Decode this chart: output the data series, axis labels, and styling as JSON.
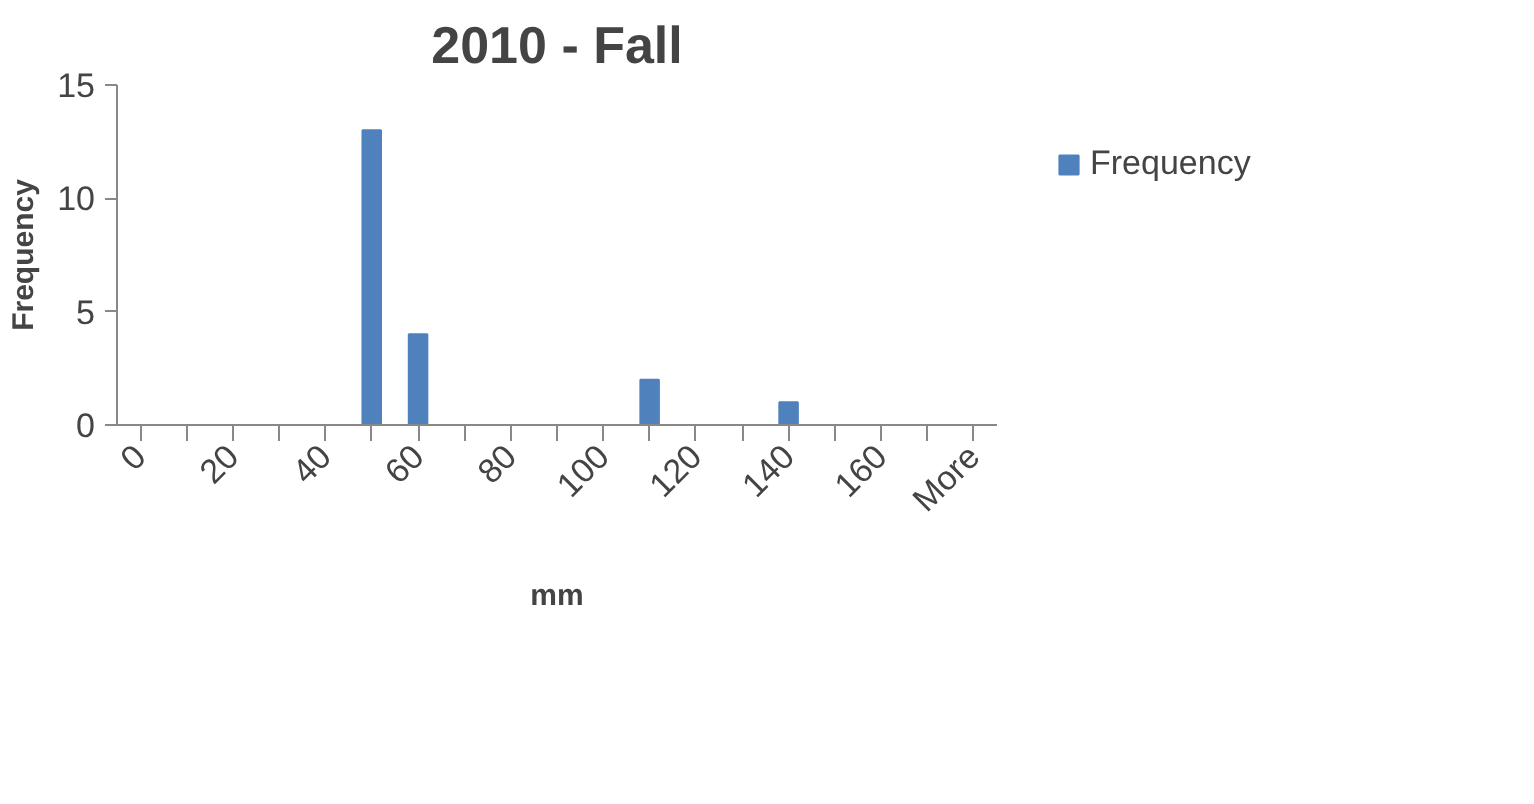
{
  "chart_data": {
    "type": "bar",
    "title": "2010 - Fall",
    "xlabel": "mm",
    "ylabel": "Frequency",
    "categories": [
      "0",
      null,
      "20",
      null,
      "40",
      null,
      "60",
      null,
      "80",
      null,
      "100",
      null,
      "120",
      null,
      "140",
      null,
      "160",
      null,
      "More"
    ],
    "series": [
      {
        "name": "Frequency",
        "color": "#4f81bd",
        "values": [
          0,
          0,
          0,
          0,
          0,
          13,
          4,
          0,
          0,
          0,
          0,
          2,
          0,
          0,
          1,
          0,
          0,
          0,
          0
        ]
      }
    ],
    "ylim": [
      0,
      15
    ],
    "yticks": [
      0,
      5,
      10,
      15
    ],
    "grid": false,
    "legend": "right"
  }
}
